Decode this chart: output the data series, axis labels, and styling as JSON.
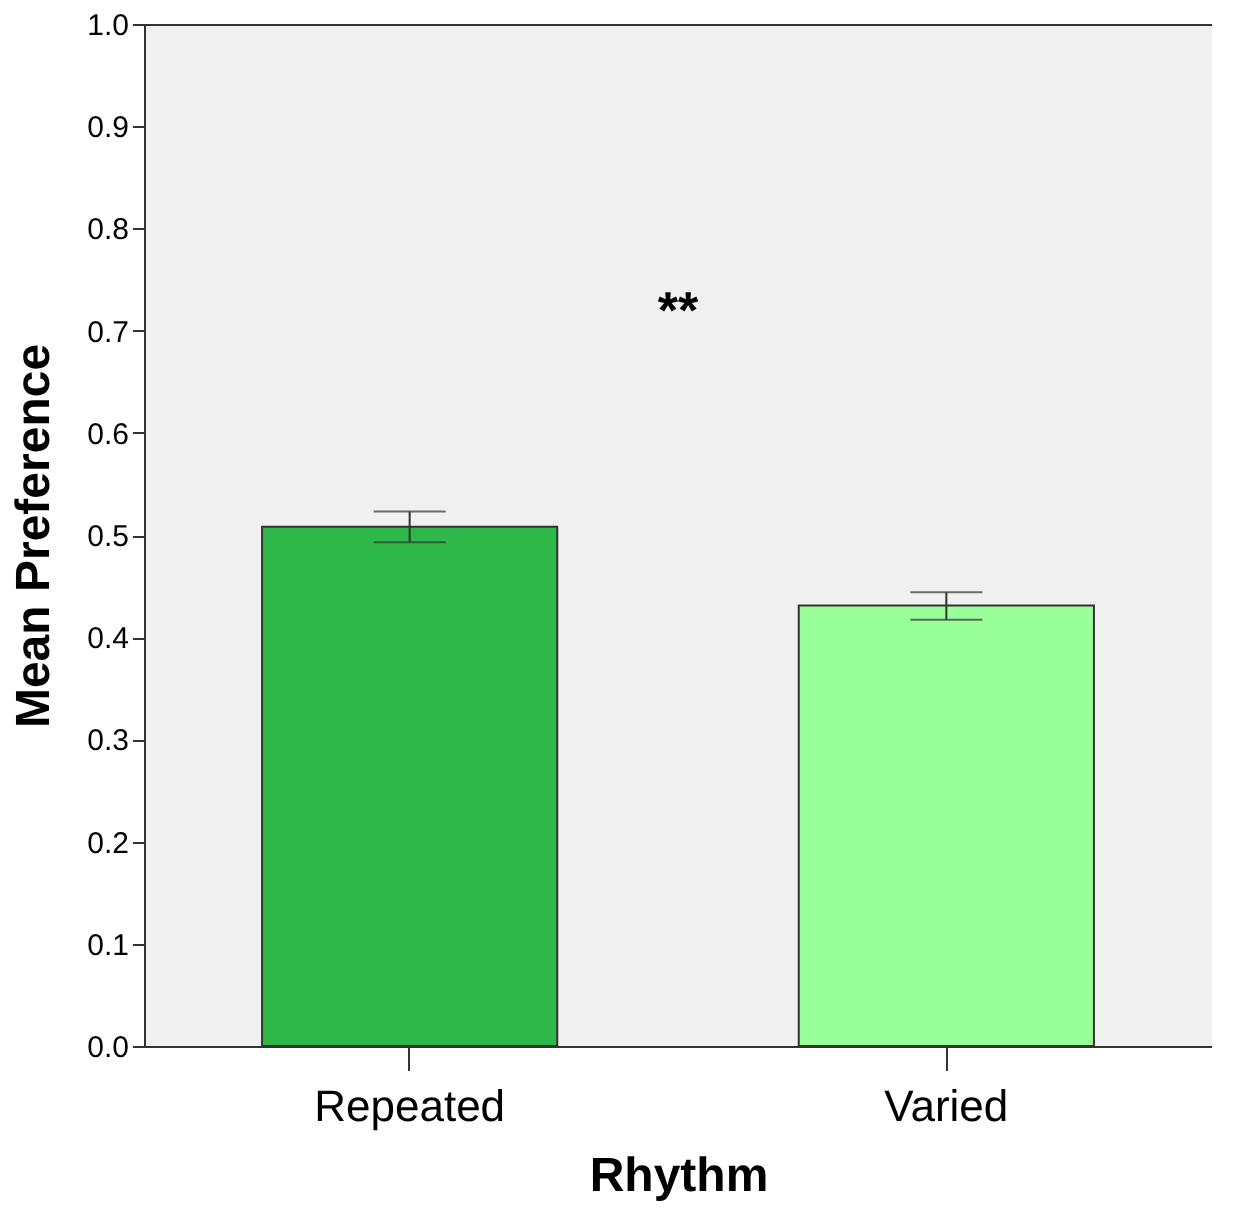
{
  "chart_data": {
    "type": "bar",
    "xlabel": "Rhythm",
    "ylabel": "Mean Preference",
    "categories": [
      "Repeated",
      "Varied"
    ],
    "values": [
      0.508,
      0.431
    ],
    "colors": [
      "#2eb84a",
      "#99ff99"
    ],
    "errors": [
      [
        0.493,
        0.523
      ],
      [
        0.417,
        0.444
      ]
    ],
    "ylim": [
      0,
      1
    ],
    "yticks": [
      {
        "value": 0,
        "label": "0.0"
      },
      0.1,
      0.2,
      0.3,
      0.4,
      0.5,
      0.6,
      0.7,
      0.8,
      0.9,
      {
        "value": 1,
        "label": "1.0"
      }
    ],
    "grid": false,
    "annotations": [
      "**"
    ]
  }
}
